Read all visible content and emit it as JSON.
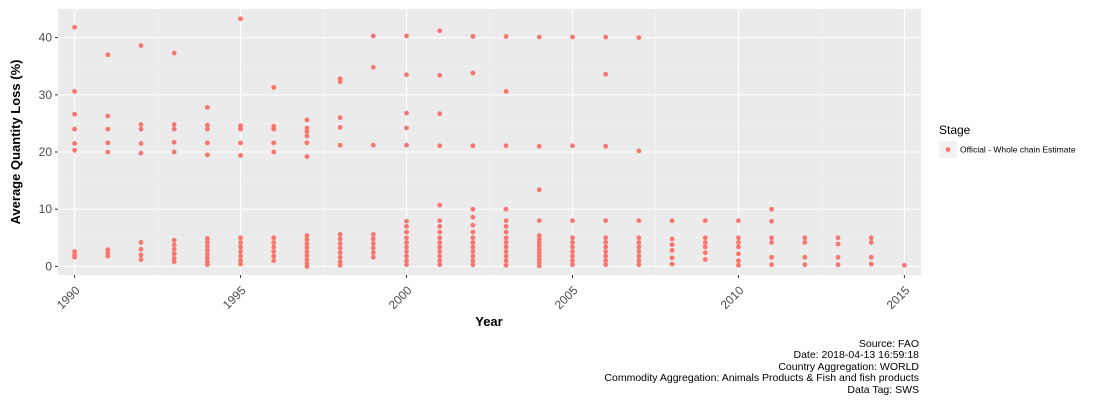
{
  "chart_data": {
    "type": "scatter",
    "title": "",
    "xlabel": "Year",
    "ylabel": "Average Quantity Loss (%)",
    "xlim": [
      1989.5,
      2015.5
    ],
    "ylim": [
      -1.5,
      45
    ],
    "x_ticks": [
      1990,
      1995,
      2000,
      2005,
      2010,
      2015
    ],
    "y_ticks": [
      0,
      10,
      20,
      30,
      40
    ],
    "grid": true,
    "legend_position": "right",
    "legend_title": "Stage",
    "point_color": "#F8766D",
    "series": [
      {
        "name": "Official - Whole chain Estimate",
        "points": [
          [
            1990,
            41.8
          ],
          [
            1990,
            30.6
          ],
          [
            1990,
            26.6
          ],
          [
            1990,
            24
          ],
          [
            1990,
            21.5
          ],
          [
            1990,
            20.3
          ],
          [
            1990,
            2.6
          ],
          [
            1990,
            2
          ],
          [
            1990,
            1.6
          ],
          [
            1991,
            37
          ],
          [
            1991,
            26.3
          ],
          [
            1991,
            24
          ],
          [
            1991,
            21.6
          ],
          [
            1991,
            20
          ],
          [
            1991,
            2.9
          ],
          [
            1991,
            2.3
          ],
          [
            1991,
            1.8
          ],
          [
            1992,
            38.6
          ],
          [
            1992,
            24.8
          ],
          [
            1992,
            24
          ],
          [
            1992,
            21.5
          ],
          [
            1992,
            19.8
          ],
          [
            1992,
            4.2
          ],
          [
            1992,
            3
          ],
          [
            1992,
            2
          ],
          [
            1992,
            1.2
          ],
          [
            1993,
            37.3
          ],
          [
            1993,
            24.8
          ],
          [
            1993,
            24
          ],
          [
            1993,
            21.7
          ],
          [
            1993,
            20
          ],
          [
            1993,
            4.6
          ],
          [
            1993,
            3.8
          ],
          [
            1993,
            3
          ],
          [
            1993,
            2.2
          ],
          [
            1993,
            1.4
          ],
          [
            1993,
            0.8
          ],
          [
            1994,
            27.8
          ],
          [
            1994,
            24.7
          ],
          [
            1994,
            24
          ],
          [
            1994,
            21.6
          ],
          [
            1994,
            19.5
          ],
          [
            1994,
            4.9
          ],
          [
            1994,
            4.2
          ],
          [
            1994,
            3.5
          ],
          [
            1994,
            2.8
          ],
          [
            1994,
            2.1
          ],
          [
            1994,
            1.4
          ],
          [
            1994,
            0.8
          ],
          [
            1994,
            0.3
          ],
          [
            1995,
            43.3
          ],
          [
            1995,
            24.6
          ],
          [
            1995,
            24
          ],
          [
            1995,
            21.6
          ],
          [
            1995,
            19.4
          ],
          [
            1995,
            5
          ],
          [
            1995,
            4.2
          ],
          [
            1995,
            3.4
          ],
          [
            1995,
            2.6
          ],
          [
            1995,
            1.8
          ],
          [
            1995,
            1
          ],
          [
            1995,
            0.4
          ],
          [
            1996,
            31.3
          ],
          [
            1996,
            24.5
          ],
          [
            1996,
            24
          ],
          [
            1996,
            21.6
          ],
          [
            1996,
            20
          ],
          [
            1996,
            5
          ],
          [
            1996,
            4.2
          ],
          [
            1996,
            3.4
          ],
          [
            1996,
            2.6
          ],
          [
            1996,
            1.8
          ],
          [
            1996,
            1
          ],
          [
            1997,
            25.6
          ],
          [
            1997,
            24.2
          ],
          [
            1997,
            23.6
          ],
          [
            1997,
            22.8
          ],
          [
            1997,
            21.6
          ],
          [
            1997,
            19.2
          ],
          [
            1997,
            5.4
          ],
          [
            1997,
            4.7
          ],
          [
            1997,
            4
          ],
          [
            1997,
            3.3
          ],
          [
            1997,
            2.6
          ],
          [
            1997,
            1.9
          ],
          [
            1997,
            1.2
          ],
          [
            1997,
            0.5
          ],
          [
            1997,
            0
          ],
          [
            1998,
            32.8
          ],
          [
            1998,
            32.3
          ],
          [
            1998,
            26
          ],
          [
            1998,
            24.3
          ],
          [
            1998,
            21.2
          ],
          [
            1998,
            5.6
          ],
          [
            1998,
            4.8
          ],
          [
            1998,
            4
          ],
          [
            1998,
            3.2
          ],
          [
            1998,
            2.4
          ],
          [
            1998,
            1.6
          ],
          [
            1998,
            0.8
          ],
          [
            1998,
            0.2
          ],
          [
            1999,
            40.3
          ],
          [
            1999,
            34.8
          ],
          [
            1999,
            21.2
          ],
          [
            1999,
            5.6
          ],
          [
            1999,
            4.8
          ],
          [
            1999,
            4
          ],
          [
            1999,
            3.2
          ],
          [
            1999,
            2.4
          ],
          [
            1999,
            1.6
          ],
          [
            2000,
            40.3
          ],
          [
            2000,
            33.5
          ],
          [
            2000,
            26.8
          ],
          [
            2000,
            24.2
          ],
          [
            2000,
            21.2
          ],
          [
            2000,
            7.9
          ],
          [
            2000,
            7
          ],
          [
            2000,
            6
          ],
          [
            2000,
            5
          ],
          [
            2000,
            4.2
          ],
          [
            2000,
            3.4
          ],
          [
            2000,
            2.6
          ],
          [
            2000,
            1.8
          ],
          [
            2000,
            1
          ],
          [
            2000,
            0.3
          ],
          [
            2001,
            41.2
          ],
          [
            2001,
            33.4
          ],
          [
            2001,
            26.7
          ],
          [
            2001,
            21.1
          ],
          [
            2001,
            10.7
          ],
          [
            2001,
            8
          ],
          [
            2001,
            7
          ],
          [
            2001,
            6
          ],
          [
            2001,
            5
          ],
          [
            2001,
            4.2
          ],
          [
            2001,
            3.4
          ],
          [
            2001,
            2.6
          ],
          [
            2001,
            1.8
          ],
          [
            2001,
            1
          ],
          [
            2001,
            0.3
          ],
          [
            2002,
            40.2
          ],
          [
            2002,
            33.8
          ],
          [
            2002,
            21.1
          ],
          [
            2002,
            10
          ],
          [
            2002,
            8.6
          ],
          [
            2002,
            7.2
          ],
          [
            2002,
            6
          ],
          [
            2002,
            5
          ],
          [
            2002,
            4.2
          ],
          [
            2002,
            3.4
          ],
          [
            2002,
            2.6
          ],
          [
            2002,
            1.8
          ],
          [
            2002,
            1
          ],
          [
            2002,
            0.3
          ],
          [
            2003,
            40.2
          ],
          [
            2003,
            30.6
          ],
          [
            2003,
            21.1
          ],
          [
            2003,
            10
          ],
          [
            2003,
            8
          ],
          [
            2003,
            7
          ],
          [
            2003,
            6
          ],
          [
            2003,
            5
          ],
          [
            2003,
            4.2
          ],
          [
            2003,
            3.4
          ],
          [
            2003,
            2.6
          ],
          [
            2003,
            1.8
          ],
          [
            2003,
            1
          ],
          [
            2003,
            0.2
          ],
          [
            2004,
            40.1
          ],
          [
            2004,
            21
          ],
          [
            2004,
            13.4
          ],
          [
            2004,
            8
          ],
          [
            2004,
            5.4
          ],
          [
            2004,
            4.8
          ],
          [
            2004,
            4.2
          ],
          [
            2004,
            3.6
          ],
          [
            2004,
            3
          ],
          [
            2004,
            2.4
          ],
          [
            2004,
            1.8
          ],
          [
            2004,
            1.2
          ],
          [
            2004,
            0.6
          ],
          [
            2004,
            0.1
          ],
          [
            2005,
            40.1
          ],
          [
            2005,
            21.1
          ],
          [
            2005,
            8
          ],
          [
            2005,
            5
          ],
          [
            2005,
            4.2
          ],
          [
            2005,
            3.4
          ],
          [
            2005,
            2.6
          ],
          [
            2005,
            1.8
          ],
          [
            2005,
            1
          ],
          [
            2005,
            0.3
          ],
          [
            2006,
            40.1
          ],
          [
            2006,
            33.6
          ],
          [
            2006,
            21
          ],
          [
            2006,
            8
          ],
          [
            2006,
            5
          ],
          [
            2006,
            4.2
          ],
          [
            2006,
            3.4
          ],
          [
            2006,
            2.6
          ],
          [
            2006,
            1.8
          ],
          [
            2006,
            1
          ],
          [
            2006,
            0.3
          ],
          [
            2007,
            40
          ],
          [
            2007,
            20.2
          ],
          [
            2007,
            8
          ],
          [
            2007,
            5
          ],
          [
            2007,
            4.2
          ],
          [
            2007,
            3.4
          ],
          [
            2007,
            2.6
          ],
          [
            2007,
            1.8
          ],
          [
            2007,
            1
          ],
          [
            2007,
            0.3
          ],
          [
            2008,
            8
          ],
          [
            2008,
            4.8
          ],
          [
            2008,
            3.8
          ],
          [
            2008,
            2.8
          ],
          [
            2008,
            1.5
          ],
          [
            2008,
            0.4
          ],
          [
            2009,
            8
          ],
          [
            2009,
            5
          ],
          [
            2009,
            4.2
          ],
          [
            2009,
            3.4
          ],
          [
            2009,
            2.4
          ],
          [
            2009,
            1.2
          ],
          [
            2010,
            8
          ],
          [
            2010,
            5
          ],
          [
            2010,
            4.2
          ],
          [
            2010,
            3.4
          ],
          [
            2010,
            2.2
          ],
          [
            2010,
            1
          ],
          [
            2010,
            0.2
          ],
          [
            2011,
            10
          ],
          [
            2011,
            7.9
          ],
          [
            2011,
            5
          ],
          [
            2011,
            4.2
          ],
          [
            2011,
            1.6
          ],
          [
            2011,
            0.3
          ],
          [
            2012,
            5
          ],
          [
            2012,
            4.2
          ],
          [
            2012,
            1.6
          ],
          [
            2012,
            0.3
          ],
          [
            2013,
            5
          ],
          [
            2013,
            3.9
          ],
          [
            2013,
            1.6
          ],
          [
            2013,
            0.3
          ],
          [
            2014,
            5
          ],
          [
            2014,
            4.2
          ],
          [
            2014,
            1.6
          ],
          [
            2014,
            0.4
          ],
          [
            2015,
            0.2
          ]
        ]
      }
    ]
  },
  "caption": {
    "source": "Source: FAO",
    "date": "Date: 2018-04-13 16:59:18",
    "country": "Country Aggregation: WORLD",
    "commodity": "Commodity Aggregation: Animals Products & Fish and fish products",
    "tag": "Data Tag: SWS"
  }
}
